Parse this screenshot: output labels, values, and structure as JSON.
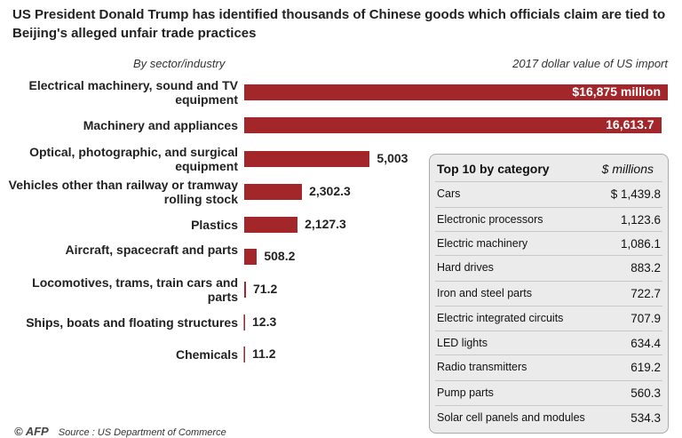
{
  "subtitle": "US President Donald Trump has identified thousands of Chinese goods which officials claim are tied to Beijing's alleged unfair trade practices",
  "left_header": "By sector/industry",
  "right_header": "2017 dollar value of US import",
  "chart_data": {
    "type": "bar",
    "orientation": "horizontal",
    "categories": [
      "Electrical machinery, sound and TV equipment",
      "Machinery and appliances",
      "Optical, photographic, and surgical equipment",
      "Vehicles other than railway or tramway rolling stock",
      "Plastics",
      "Aircraft, spacecraft and parts",
      "Locomotives, trams, train cars and parts",
      "Ships, boats and floating structures",
      "Chemicals"
    ],
    "values": [
      16875,
      16613.7,
      5003,
      2302.3,
      2127.3,
      508.2,
      71.2,
      12.3,
      11.2
    ],
    "labels": [
      "$16,875 million",
      "16,613.7",
      "5,003",
      "2,302.3",
      "2,127.3",
      "508.2",
      "71.2",
      "12.3",
      "11.2"
    ],
    "color": "#a3262a"
  },
  "table": {
    "title": "Top 10 by category",
    "unit": "$ millions",
    "rows": [
      {
        "name": "Cars",
        "value": "$ 1,439.8"
      },
      {
        "name": "Electronic processors",
        "value": "1,123.6"
      },
      {
        "name": "Electric machinery",
        "value": "1,086.1"
      },
      {
        "name": "Hard drives",
        "value": "883.2"
      },
      {
        "name": "Iron and steel parts",
        "value": "722.7"
      },
      {
        "name": "Electric integrated circuits",
        "value": "707.9"
      },
      {
        "name": "LED lights",
        "value": "634.4"
      },
      {
        "name": "Radio transmitters",
        "value": "619.2"
      },
      {
        "name": "Pump parts",
        "value": "560.3"
      },
      {
        "name": "Solar cell panels and modules",
        "value": "534.3"
      }
    ]
  },
  "footer": {
    "logo": "© AFP",
    "source": "Source : US Department of Commerce"
  }
}
